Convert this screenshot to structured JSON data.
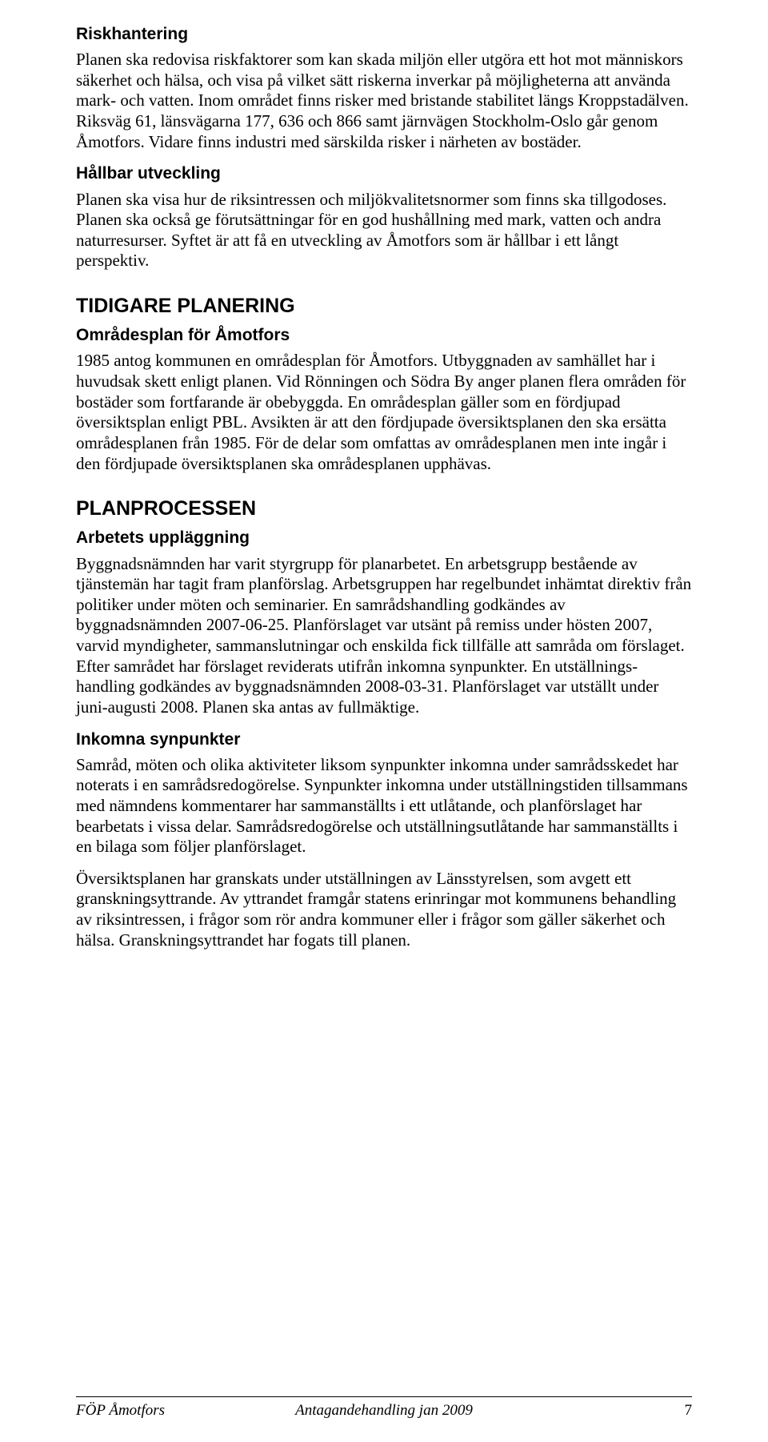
{
  "sections": {
    "riskhantering": {
      "heading": "Riskhantering",
      "para": "Planen ska redovisa riskfaktorer som kan skada miljön eller utgöra ett hot mot människors säkerhet och hälsa, och visa på vilket sätt riskerna inverkar på möjligheterna att använda mark- och vatten. Inom området finns risker med bristande stabilitet längs Kroppstadälven. Riksväg 61, länsvägarna 177, 636 och 866 samt järnvägen Stockholm-Oslo går genom Åmotfors. Vidare finns industri med särskilda risker i närheten av bostäder."
    },
    "hallbar": {
      "heading": "Hållbar utveckling",
      "para": "Planen ska visa hur de riksintressen och miljökvalitetsnormer som finns ska tillgodoses. Planen ska också ge förutsättningar för en god hushållning med mark, vatten och andra naturresurser. Syftet är att få en utveckling av Åmotfors som är hållbar i ett långt perspektiv."
    },
    "tidigare": {
      "heading": "TIDIGARE PLANERING",
      "sub_heading": "Områdesplan för Åmotfors",
      "para": "1985 antog kommunen en områdesplan för Åmotfors. Utbyggnaden av samhället har i huvudsak skett enligt planen. Vid Rönningen och Södra By anger planen flera områden för bostäder som fortfarande är obebyggda. En områdesplan gäller som en fördjupad översiktsplan enligt PBL. Avsikten är att den fördjupade översiktsplanen den ska ersätta områdesplanen från 1985. För de delar som omfattas av områdesplanen men inte ingår i den fördjupade översiktsplanen ska områdesplanen upphävas."
    },
    "planprocessen": {
      "heading": "PLANPROCESSEN",
      "arbetets": {
        "heading": "Arbetets uppläggning",
        "para": "Byggnadsnämnden har varit styrgrupp för planarbetet. En arbetsgrupp bestående av tjänstemän har tagit fram planförslag. Arbetsgruppen har regelbundet inhämtat direktiv från politiker under möten och seminarier. En samrådshandling godkändes av byggnadsnämnden 2007-06-25. Planförslaget var utsänt på remiss under hösten 2007, varvid myndigheter, sammanslutningar och enskilda fick tillfälle att samråda om förslaget. Efter samrådet har förslaget reviderats utifrån inkomna synpunkter. En utställnings-handling godkändes av byggnadsnämnden 2008-03-31. Planförslaget var utställt under juni-augusti 2008. Planen ska antas av fullmäktige."
      },
      "inkomna": {
        "heading": "Inkomna synpunkter",
        "para1": "Samråd, möten och olika aktiviteter liksom synpunkter inkomna under samrådsskedet har noterats i en samrådsredogörelse. Synpunkter inkomna under utställningstiden tillsammans med nämndens kommentarer har sammanställts i ett utlåtande, och planförslaget har bearbetats i vissa delar. Samrådsredogörelse och utställningsutlåtande har sammanställts i en bilaga som följer planförslaget.",
        "para2": "Översiktsplanen har granskats under utställningen av Länsstyrelsen, som avgett ett granskningsyttrande. Av yttrandet framgår statens erinringar mot kommunens behandling av riksintressen, i  frågor som rör andra kommuner eller i frågor som gäller säkerhet och hälsa. Granskningsyttrandet har fogats till planen."
      }
    }
  },
  "footer": {
    "left": "FÖP Åmotfors",
    "center": "Antagandehandling jan 2009",
    "page": "7"
  }
}
